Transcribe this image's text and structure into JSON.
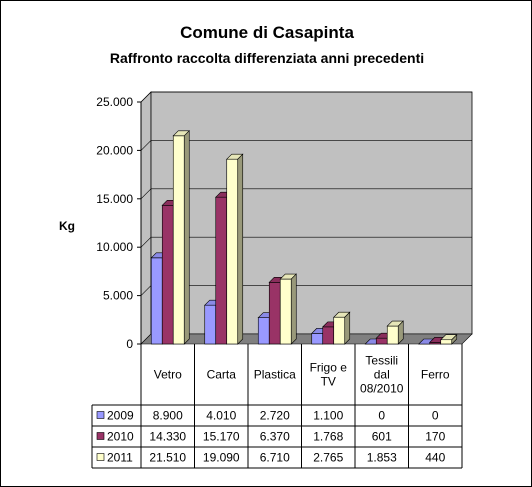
{
  "chart_data": {
    "type": "bar",
    "title": "Comune di Casapinta",
    "subtitle": "Raffronto raccolta differenziata anni precedenti",
    "ylabel": "Kg",
    "xlabel": "",
    "ylim": [
      0,
      25000
    ],
    "yticks": [
      "0",
      "5.000",
      "10.000",
      "15.000",
      "20.000",
      "25.000"
    ],
    "grid": true,
    "categories": [
      [
        "Vetro"
      ],
      [
        "Carta"
      ],
      [
        "Plastica"
      ],
      [
        "Frigo e",
        "TV"
      ],
      [
        "Tessili",
        "dal",
        "08/2010"
      ],
      [
        "Ferro"
      ]
    ],
    "series": [
      {
        "name": "2009",
        "color": "#9999ff",
        "values": [
          8900,
          4010,
          2720,
          1100,
          0,
          0
        ],
        "labels": [
          "8.900",
          "4.010",
          "2.720",
          "1.100",
          "0",
          "0"
        ]
      },
      {
        "name": "2010",
        "color": "#993366",
        "values": [
          14330,
          15170,
          6370,
          1768,
          601,
          170
        ],
        "labels": [
          "14.330",
          "15.170",
          "6.370",
          "1.768",
          "601",
          "170"
        ]
      },
      {
        "name": "2011",
        "color": "#ffffcc",
        "values": [
          21510,
          19090,
          6710,
          2765,
          1853,
          440
        ],
        "labels": [
          "21.510",
          "19.090",
          "6.710",
          "2.765",
          "1.853",
          "440"
        ]
      }
    ],
    "colors": {
      "wall": "#c0c0c0",
      "floor": "#808080"
    }
  }
}
